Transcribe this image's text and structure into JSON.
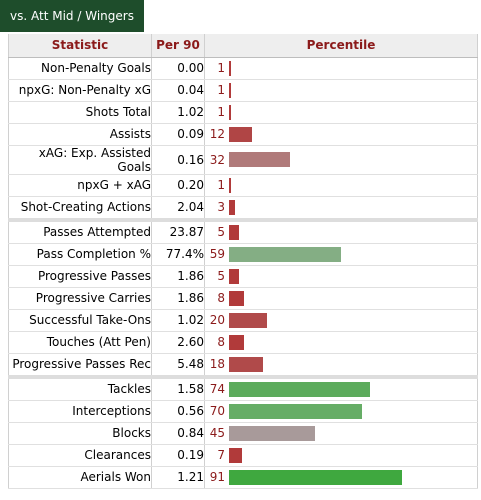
{
  "tab_label": "vs. Att Mid / Wingers",
  "headers": {
    "statistic": "Statistic",
    "per90": "Per 90",
    "percentile": "Percentile"
  },
  "colors": {
    "low": "#b13a3a",
    "mid_low": "#b07a7a",
    "neutral": "#a89a9a",
    "mid_high": "#84ae84",
    "high": "#5cab5c",
    "very_high": "#3fa83f"
  },
  "rows": [
    {
      "stat": "Non-Penalty Goals",
      "per90": "0.00",
      "pct": "1",
      "pct_value": 1,
      "color": "#b13a3a",
      "group_start": false
    },
    {
      "stat": "npxG: Non-Penalty xG",
      "per90": "0.04",
      "pct": "1",
      "pct_value": 1,
      "color": "#b13a3a",
      "group_start": false
    },
    {
      "stat": "Shots Total",
      "per90": "1.02",
      "pct": "1",
      "pct_value": 1,
      "color": "#b13a3a",
      "group_start": false
    },
    {
      "stat": "Assists",
      "per90": "0.09",
      "pct": "12",
      "pct_value": 12,
      "color": "#b04545",
      "group_start": false
    },
    {
      "stat": "xAG: Exp. Assisted Goals",
      "per90": "0.16",
      "pct": "32",
      "pct_value": 32,
      "color": "#b07a7a",
      "group_start": false
    },
    {
      "stat": "npxG + xAG",
      "per90": "0.20",
      "pct": "1",
      "pct_value": 1,
      "color": "#b13a3a",
      "group_start": false
    },
    {
      "stat": "Shot-Creating Actions",
      "per90": "2.04",
      "pct": "3",
      "pct_value": 3,
      "color": "#b13a3a",
      "group_start": false
    },
    {
      "stat": "Passes Attempted",
      "per90": "23.87",
      "pct": "5",
      "pct_value": 5,
      "color": "#b13a3a",
      "group_start": true
    },
    {
      "stat": "Pass Completion %",
      "per90": "77.4%",
      "pct": "59",
      "pct_value": 59,
      "color": "#84ae84",
      "group_start": false
    },
    {
      "stat": "Progressive Passes",
      "per90": "1.86",
      "pct": "5",
      "pct_value": 5,
      "color": "#b13a3a",
      "group_start": false
    },
    {
      "stat": "Progressive Carries",
      "per90": "1.86",
      "pct": "8",
      "pct_value": 8,
      "color": "#b13a3a",
      "group_start": false
    },
    {
      "stat": "Successful Take-Ons",
      "per90": "1.02",
      "pct": "20",
      "pct_value": 20,
      "color": "#b04a4a",
      "group_start": false
    },
    {
      "stat": "Touches (Att Pen)",
      "per90": "2.60",
      "pct": "8",
      "pct_value": 8,
      "color": "#b13a3a",
      "group_start": false
    },
    {
      "stat": "Progressive Passes Rec",
      "per90": "5.48",
      "pct": "18",
      "pct_value": 18,
      "color": "#b04a4a",
      "group_start": false
    },
    {
      "stat": "Tackles",
      "per90": "1.58",
      "pct": "74",
      "pct_value": 74,
      "color": "#5cab5c",
      "group_start": true
    },
    {
      "stat": "Interceptions",
      "per90": "0.56",
      "pct": "70",
      "pct_value": 70,
      "color": "#66ad66",
      "group_start": false
    },
    {
      "stat": "Blocks",
      "per90": "0.84",
      "pct": "45",
      "pct_value": 45,
      "color": "#a89a9a",
      "group_start": false
    },
    {
      "stat": "Clearances",
      "per90": "0.19",
      "pct": "7",
      "pct_value": 7,
      "color": "#b13a3a",
      "group_start": false
    },
    {
      "stat": "Aerials Won",
      "per90": "1.21",
      "pct": "91",
      "pct_value": 91,
      "color": "#3fa83f",
      "group_start": false
    }
  ]
}
